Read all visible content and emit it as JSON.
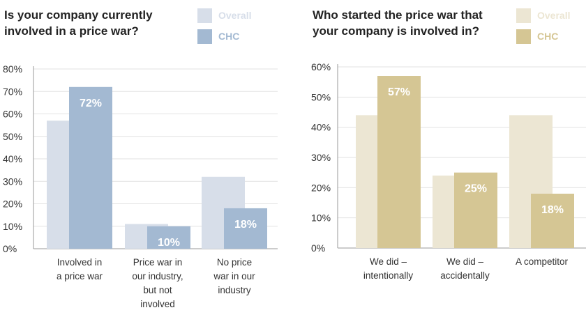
{
  "chart_data": [
    {
      "type": "bar",
      "title": "Is your company currently involved in a price war?",
      "categories": [
        [
          "Involved in",
          "a price war"
        ],
        [
          "Price war in",
          "our industry,",
          "but not",
          "involved"
        ],
        [
          "No price",
          "war in our",
          "industry"
        ]
      ],
      "series": [
        {
          "name": "Overall",
          "values": [
            57,
            11,
            32
          ],
          "color": "#d7dee9"
        },
        {
          "name": "CHC",
          "values": [
            72,
            10,
            18
          ],
          "color": "#a3b9d2"
        }
      ],
      "data_labels": {
        "CHC": [
          "72%",
          "10%",
          "18%"
        ]
      },
      "yticks": [
        "0%",
        "10%",
        "20%",
        "30%",
        "40%",
        "50%",
        "60%",
        "70%",
        "80%"
      ],
      "ylim": [
        0,
        80
      ],
      "legend": "top-right",
      "grid": true
    },
    {
      "type": "bar",
      "title": "Who started the price war that your company is involved in?",
      "categories": [
        [
          "We did –",
          "intentionally"
        ],
        [
          "We did –",
          "accidentally"
        ],
        [
          "A competitor"
        ]
      ],
      "series": [
        {
          "name": "Overall",
          "values": [
            44,
            24,
            44
          ],
          "color": "#ece6d3"
        },
        {
          "name": "CHC",
          "values": [
            57,
            25,
            18
          ],
          "color": "#d5c694"
        }
      ],
      "data_labels": {
        "CHC": [
          "57%",
          "25%",
          "18%"
        ]
      },
      "yticks": [
        "0%",
        "10%",
        "20%",
        "30%",
        "40%",
        "50%",
        "60%"
      ],
      "ylim": [
        0,
        60
      ],
      "legend": "top-right",
      "grid": true
    }
  ]
}
